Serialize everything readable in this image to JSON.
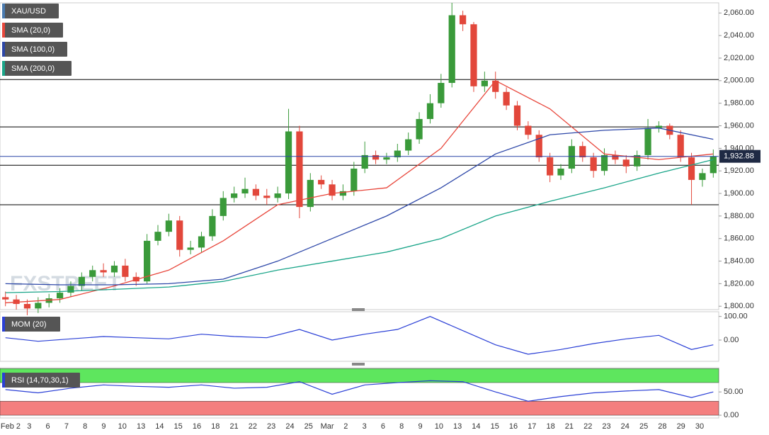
{
  "chart_data": [
    {
      "type": "candlestick",
      "name": "XAU/USD",
      "watermark": "FXSTREET",
      "x_labels": [
        "Feb 2",
        "3",
        "6",
        "7",
        "8",
        "9",
        "10",
        "13",
        "14",
        "15",
        "16",
        "18",
        "21",
        "22",
        "23",
        "24",
        "25",
        "Mar",
        "2",
        "3",
        "6",
        "8",
        "9",
        "10",
        "13",
        "14",
        "15",
        "16",
        "17",
        "18",
        "21",
        "22",
        "23",
        "24",
        "25",
        "28",
        "29",
        "30"
      ],
      "open": [
        1808,
        1806,
        1802,
        1798,
        1803,
        1807,
        1812,
        1818,
        1826,
        1832,
        1830,
        1836,
        1826,
        1822,
        1858,
        1866,
        1876,
        1850,
        1852,
        1862,
        1880,
        1896,
        1900,
        1904,
        1898,
        1896,
        1900,
        1955,
        1888,
        1912,
        1908,
        1898,
        1902,
        1922,
        1934,
        1930,
        1932,
        1938,
        1948,
        1966,
        1980,
        1998,
        2058,
        2050,
        1995,
        2000,
        1990,
        1978,
        1960,
        1952,
        1932,
        1916,
        1922,
        1942,
        1932,
        1920,
        1934,
        1930,
        1924,
        1934,
        1958,
        1960,
        1952,
        1932,
        1912,
        1918
      ],
      "high": [
        1813,
        1810,
        1806,
        1808,
        1811,
        1816,
        1822,
        1830,
        1836,
        1838,
        1840,
        1842,
        1830,
        1864,
        1872,
        1882,
        1880,
        1858,
        1866,
        1886,
        1902,
        1906,
        1914,
        1908,
        1904,
        1906,
        1975,
        1960,
        1918,
        1916,
        1912,
        1908,
        1928,
        1946,
        1938,
        1936,
        1944,
        1954,
        1972,
        1988,
        2006,
        2069,
        2062,
        2052,
        2008,
        2008,
        1994,
        1982,
        1964,
        1956,
        1936,
        1926,
        1948,
        1946,
        1936,
        1940,
        1938,
        1934,
        1938,
        1966,
        1964,
        1962,
        1956,
        1936,
        1922,
        1939
      ],
      "low": [
        1800,
        1797,
        1792,
        1794,
        1799,
        1803,
        1808,
        1814,
        1822,
        1826,
        1826,
        1822,
        1818,
        1820,
        1854,
        1862,
        1844,
        1846,
        1848,
        1858,
        1876,
        1892,
        1896,
        1894,
        1890,
        1892,
        1895,
        1878,
        1884,
        1904,
        1894,
        1894,
        1898,
        1918,
        1926,
        1926,
        1928,
        1934,
        1944,
        1962,
        1976,
        1994,
        2044,
        1990,
        1990,
        1984,
        1974,
        1956,
        1948,
        1928,
        1910,
        1912,
        1918,
        1928,
        1914,
        1916,
        1926,
        1918,
        1920,
        1930,
        1954,
        1948,
        1928,
        1890,
        1906,
        1914
      ],
      "close": [
        1806,
        1802,
        1798,
        1803,
        1807,
        1812,
        1818,
        1826,
        1832,
        1830,
        1836,
        1826,
        1822,
        1858,
        1866,
        1876,
        1850,
        1852,
        1862,
        1880,
        1896,
        1900,
        1904,
        1898,
        1896,
        1900,
        1955,
        1888,
        1912,
        1908,
        1898,
        1902,
        1922,
        1934,
        1930,
        1932,
        1938,
        1948,
        1966,
        1980,
        1998,
        2058,
        2050,
        1995,
        2000,
        1990,
        1978,
        1960,
        1952,
        1932,
        1916,
        1922,
        1942,
        1932,
        1920,
        1934,
        1930,
        1924,
        1934,
        1958,
        1960,
        1952,
        1932,
        1912,
        1918,
        1932.88
      ],
      "up_color": "#3a9a3a",
      "down_color": "#e2473b",
      "series": [
        {
          "name": "SMA (20,0)",
          "color": "#e8473c",
          "x": [
            0,
            5,
            10,
            15,
            20,
            25,
            30,
            35,
            40,
            45,
            50,
            55,
            60,
            65
          ],
          "values": [
            1803,
            1806,
            1818,
            1832,
            1858,
            1890,
            1900,
            1905,
            1940,
            2000,
            1975,
            1935,
            1930,
            1935
          ]
        },
        {
          "name": "SMA (100,0)",
          "color": "#2d47a8",
          "x": [
            0,
            5,
            10,
            15,
            20,
            25,
            30,
            35,
            40,
            45,
            50,
            55,
            60,
            65
          ],
          "values": [
            1820,
            1819,
            1819,
            1820,
            1824,
            1840,
            1860,
            1880,
            1905,
            1935,
            1952,
            1956,
            1958,
            1948
          ]
        },
        {
          "name": "SMA (200,0)",
          "color": "#1aa589",
          "x": [
            0,
            5,
            10,
            15,
            20,
            25,
            30,
            35,
            40,
            45,
            50,
            55,
            60,
            65
          ],
          "values": [
            1812,
            1813,
            1815,
            1817,
            1822,
            1832,
            1840,
            1848,
            1860,
            1880,
            1893,
            1905,
            1918,
            1930
          ]
        }
      ],
      "levels": [
        2001,
        1959,
        1925,
        1890
      ],
      "last_price": {
        "value": 1932.88,
        "label": "1,932.88"
      },
      "ylim": [
        1797,
        2069
      ],
      "yticks": [
        {
          "value": 1800,
          "label": "1,800.00"
        },
        {
          "value": 1820,
          "label": "1,820.00"
        },
        {
          "value": 1840,
          "label": "1,840.00"
        },
        {
          "value": 1860,
          "label": "1,860.00"
        },
        {
          "value": 1880,
          "label": "1,880.00"
        },
        {
          "value": 1900,
          "label": "1,900.00"
        },
        {
          "value": 1920,
          "label": "1,920.00"
        },
        {
          "value": 1940,
          "label": "1,940.00"
        },
        {
          "value": 1960,
          "label": "1,960.00"
        },
        {
          "value": 1980,
          "label": "1,980.00"
        },
        {
          "value": 2000,
          "label": "2,000.00"
        },
        {
          "value": 2020,
          "label": "2,020.00"
        },
        {
          "value": 2040,
          "label": "2,040.00"
        },
        {
          "value": 2060,
          "label": "2,060.00"
        }
      ],
      "grid": true
    },
    {
      "type": "line",
      "name": "MOM (20)",
      "color": "#2a3fd6",
      "x": [
        0,
        3,
        6,
        9,
        12,
        15,
        18,
        21,
        24,
        27,
        30,
        33,
        36,
        39,
        42,
        45,
        48,
        51,
        54,
        57,
        60,
        63,
        65
      ],
      "values": [
        10,
        -5,
        5,
        15,
        10,
        5,
        25,
        15,
        10,
        45,
        0,
        25,
        45,
        100,
        40,
        -20,
        -60,
        -40,
        -15,
        5,
        20,
        -40,
        -20
      ],
      "ylim": [
        -90,
        120
      ],
      "yticks": [
        {
          "value": 100,
          "label": "100.00"
        },
        {
          "value": 0,
          "label": "0.00"
        }
      ]
    },
    {
      "type": "line",
      "name": "RSI (14,70,30,1)",
      "color": "#2a3fd6",
      "x": [
        0,
        3,
        6,
        9,
        12,
        15,
        18,
        21,
        24,
        27,
        30,
        33,
        36,
        39,
        42,
        45,
        48,
        51,
        54,
        57,
        60,
        63,
        65
      ],
      "values": [
        55,
        48,
        58,
        65,
        62,
        60,
        65,
        58,
        60,
        72,
        45,
        65,
        70,
        74,
        72,
        50,
        30,
        40,
        48,
        52,
        55,
        38,
        50
      ],
      "bands": [
        {
          "range": [
            70,
            100
          ],
          "color": "#5ee65e"
        },
        {
          "range": [
            0,
            30
          ],
          "color": "#f47f7f"
        }
      ],
      "ylim": [
        -6,
        102
      ],
      "yticks": [
        {
          "value": 50,
          "label": "50.00"
        },
        {
          "value": 0,
          "label": "0.00"
        }
      ]
    }
  ]
}
